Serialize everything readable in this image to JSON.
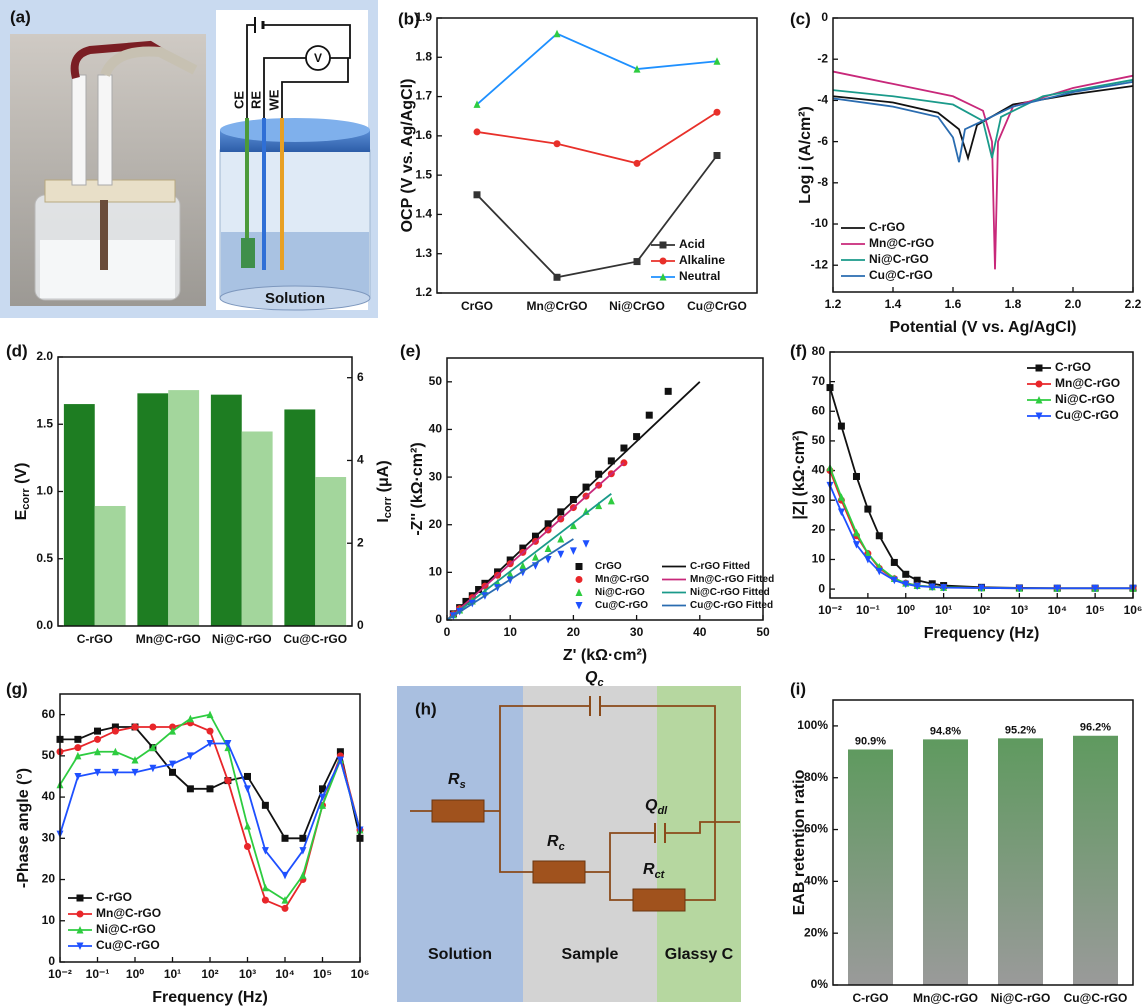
{
  "panel_a": {
    "label": "(a)",
    "electrodes": [
      "CE",
      "RE",
      "WE"
    ],
    "meter": "V",
    "vessel": "Solution"
  },
  "panel_h": {
    "label": "(h)",
    "elements": [
      {
        "symbol": "Q",
        "sub": "c"
      },
      {
        "symbol": "R",
        "sub": "s"
      },
      {
        "symbol": "Q",
        "sub": "dl"
      },
      {
        "symbol": "R",
        "sub": "c"
      },
      {
        "symbol": "R",
        "sub": "ct"
      }
    ],
    "regions": [
      "Solution",
      "Sample",
      "Glassy C"
    ]
  },
  "chart_data": [
    {
      "label": "(b)",
      "type": "line",
      "categories": [
        "CrGO",
        "Mn@CrGO",
        "Ni@CrGO",
        "Cu@CrGO"
      ],
      "series": [
        {
          "name": "Acid",
          "color": "#333333",
          "marker": "square",
          "values": [
            1.45,
            1.24,
            1.28,
            1.55
          ]
        },
        {
          "name": "Alkaline",
          "color": "#e8302a",
          "marker": "circle",
          "values": [
            1.61,
            1.58,
            1.53,
            1.66
          ]
        },
        {
          "name": "Neutral",
          "color": "#1e90ff",
          "marker_color": "#2ecc40",
          "marker": "triangle",
          "values": [
            1.68,
            1.86,
            1.77,
            1.79
          ]
        }
      ],
      "ylim": [
        1.2,
        1.9
      ],
      "yticks": [
        1.2,
        1.3,
        1.4,
        1.5,
        1.6,
        1.7,
        1.8,
        1.9
      ],
      "y_label": "OCP (V vs. Ag/AgCl)",
      "legend": "lower-right"
    },
    {
      "label": "(c)",
      "type": "line",
      "series": [
        {
          "name": "C-rGO",
          "color": "#111111",
          "x": [
            1.2,
            1.4,
            1.55,
            1.62,
            1.65,
            1.68,
            1.8,
            2.0,
            2.2
          ],
          "values": [
            -3.8,
            -4.1,
            -4.6,
            -5.4,
            -6.8,
            -5.2,
            -4.2,
            -3.7,
            -3.3
          ]
        },
        {
          "name": "Mn@C-rGO",
          "color": "#c8287a",
          "x": [
            1.2,
            1.4,
            1.6,
            1.7,
            1.73,
            1.74,
            1.75,
            1.8,
            2.0,
            2.2
          ],
          "values": [
            -2.6,
            -3.2,
            -3.8,
            -4.5,
            -6,
            -12.2,
            -6,
            -4.3,
            -3.4,
            -2.8
          ]
        },
        {
          "name": "Ni@C-rGO",
          "color": "#1a9a8a",
          "x": [
            1.2,
            1.4,
            1.6,
            1.7,
            1.73,
            1.76,
            1.9,
            2.2
          ],
          "values": [
            -3.5,
            -3.8,
            -4.2,
            -5,
            -6.8,
            -4.8,
            -3.8,
            -3.0
          ]
        },
        {
          "name": "Cu@C-rGO",
          "color": "#2a6cb0",
          "x": [
            1.2,
            1.4,
            1.55,
            1.6,
            1.62,
            1.64,
            1.8,
            2.0,
            2.2
          ],
          "values": [
            -3.9,
            -4.3,
            -4.8,
            -5.8,
            -7,
            -5.4,
            -4.3,
            -3.6,
            -3.1
          ]
        }
      ],
      "xlim": [
        1.2,
        2.2
      ],
      "xticks": [
        1.2,
        1.4,
        1.6,
        1.8,
        {
          "value": 2,
          "label": "2.0"
        },
        2.2
      ],
      "ylim": [
        -13.3,
        0
      ],
      "yticks": [
        0,
        -2,
        -4,
        -6,
        -8,
        -10,
        -12
      ],
      "x_label": "Potential (V vs. Ag/AgCl)",
      "y_label": "Log j (A/cm²)",
      "legend": "lower-left"
    },
    {
      "label": "(d)",
      "type": "bar",
      "categories": [
        "C-rGO",
        "Mn@C-rGO",
        "Ni@C-rGO",
        "Cu@C-rGO"
      ],
      "series": [
        {
          "color": "#1e7d22",
          "values": [
            1.65,
            1.73,
            1.72,
            1.61
          ]
        },
        {
          "color": "#a3d69c",
          "axis": "y2",
          "values": [
            2.9,
            5.7,
            4.7,
            3.6
          ]
        }
      ],
      "ylim": [
        0,
        2
      ],
      "yticks": [
        {
          "value": 0,
          "label": "0.0"
        },
        0.5,
        {
          "value": 1,
          "label": "1.0"
        },
        1.5,
        {
          "value": 2,
          "label": "2.0"
        }
      ],
      "y2lim": [
        0,
        6.5
      ],
      "y2ticks": [
        0,
        2,
        4,
        6
      ],
      "y_label": [
        "E",
        "corr",
        " (V)"
      ],
      "y2_label": [
        "I",
        "corr",
        " (μA)"
      ]
    },
    {
      "label": "(e)",
      "type": "scatter",
      "series": [
        {
          "name": "CrGO",
          "color": "#111111",
          "marker": "square",
          "line": false,
          "x": [
            1,
            2,
            3,
            4,
            5,
            6,
            8,
            10,
            12,
            14,
            16,
            18,
            20,
            22,
            24,
            26,
            28,
            30,
            32,
            35
          ],
          "values": [
            1.3,
            2.6,
            3.9,
            5.1,
            6.4,
            7.7,
            10.1,
            12.6,
            15.1,
            17.6,
            20.2,
            22.7,
            25.3,
            27.9,
            30.6,
            33.4,
            36.1,
            38.5,
            43,
            48
          ]
        },
        {
          "name": "C-rGO Fitted",
          "color": "#111111",
          "x": [
            0,
            40
          ],
          "values": [
            0,
            50
          ]
        },
        {
          "name": "Mn@C-rGO",
          "color": "#e8262a",
          "marker": "circle",
          "line": false,
          "x": [
            1,
            2,
            4,
            6,
            8,
            10,
            12,
            14,
            16,
            18,
            20,
            22,
            24,
            26,
            28
          ],
          "values": [
            1.2,
            2.4,
            4.7,
            7.1,
            9.4,
            11.8,
            14.2,
            16.5,
            18.9,
            21.2,
            23.6,
            26,
            28.3,
            30.7,
            33
          ]
        },
        {
          "name": "Mn@C-rGO Fitted",
          "color": "#c8287a",
          "x": [
            0,
            28
          ],
          "values": [
            0,
            33
          ]
        },
        {
          "name": "Ni@C-rGO",
          "color": "#2ecc40",
          "marker": "triangle",
          "line": false,
          "x": [
            1,
            2,
            4,
            6,
            8,
            10,
            12,
            14,
            16,
            18,
            20,
            22,
            24,
            26
          ],
          "values": [
            1.1,
            2.1,
            4,
            5.9,
            7.8,
            9.6,
            11.4,
            13.2,
            15,
            17,
            19.8,
            22.8,
            24,
            25
          ]
        },
        {
          "name": "Ni@C-rGO Fitted",
          "color": "#1a9a8a",
          "x": [
            0,
            26
          ],
          "values": [
            0,
            26.5
          ]
        },
        {
          "name": "Cu@C-rGO",
          "color": "#1e50ff",
          "marker": "triangle-down",
          "line": false,
          "x": [
            1,
            2,
            4,
            6,
            8,
            10,
            12,
            14,
            16,
            18,
            20,
            22
          ],
          "values": [
            0.9,
            1.8,
            3.5,
            5.1,
            6.8,
            8.4,
            10,
            11.4,
            12.7,
            13.8,
            14.5,
            16
          ]
        },
        {
          "name": "Cu@C-rGO Fitted",
          "color": "#2a6cb0",
          "x": [
            0,
            20
          ],
          "values": [
            0,
            17
          ]
        }
      ],
      "xlim": [
        0,
        50
      ],
      "xticks": [
        0,
        10,
        20,
        30,
        40,
        50
      ],
      "ylim": [
        0,
        55
      ],
      "yticks": [
        0,
        10,
        20,
        30,
        40,
        50
      ],
      "x_label": "Z' (kΩ·cm²)",
      "y_label": "-Z'' (kΩ·cm²)",
      "legend": "lower-right",
      "legend_columns": 2
    },
    {
      "label": "(f)",
      "type": "line",
      "xscale": "log",
      "series": [
        {
          "name": "C-rGO",
          "color": "#111111",
          "marker": "square",
          "x": [
            0.01,
            0.02,
            0.05,
            0.1,
            0.2,
            0.5,
            1,
            2,
            5,
            10,
            100,
            1000,
            10000,
            100000,
            1000000
          ],
          "values": [
            68,
            55,
            38,
            27,
            18,
            9,
            5,
            3,
            1.8,
            1.2,
            0.6,
            0.4,
            0.3,
            0.3,
            0.3
          ]
        },
        {
          "name": "Mn@C-rGO",
          "color": "#e8262a",
          "marker": "circle",
          "x": [
            0.01,
            0.02,
            0.05,
            0.1,
            0.2,
            0.5,
            1,
            2,
            5,
            10,
            100,
            1000,
            10000,
            100000,
            1000000
          ],
          "values": [
            40,
            30,
            18,
            12,
            7,
            3.5,
            2,
            1.2,
            0.8,
            0.6,
            0.4,
            0.3,
            0.3,
            0.3,
            0.3
          ]
        },
        {
          "name": "Ni@C-rGO",
          "color": "#2ecc40",
          "marker": "triangle",
          "x": [
            0.01,
            0.02,
            0.05,
            0.1,
            0.2,
            0.5,
            1,
            2,
            5,
            10,
            100,
            1000,
            10000,
            100000,
            1000000
          ],
          "values": [
            41,
            31,
            19,
            12,
            7.5,
            3.6,
            2,
            1.2,
            0.8,
            0.6,
            0.4,
            0.3,
            0.3,
            0.3,
            0.3
          ]
        },
        {
          "name": "Cu@C-rGO",
          "color": "#1e50ff",
          "marker": "triangle-down",
          "x": [
            0.01,
            0.02,
            0.05,
            0.1,
            0.2,
            0.5,
            1,
            2,
            5,
            10,
            100,
            1000,
            10000,
            100000,
            1000000
          ],
          "values": [
            35,
            26,
            15,
            10,
            6,
            3,
            1.7,
            1,
            0.7,
            0.5,
            0.4,
            0.3,
            0.3,
            0.3,
            0.3
          ]
        }
      ],
      "xlim": [
        0.01,
        1000000
      ],
      "xticks": [
        {
          "value": 0.01,
          "label": "10⁻²"
        },
        {
          "value": 0.1,
          "label": "10⁻¹"
        },
        {
          "value": 1,
          "label": "10⁰"
        },
        {
          "value": 10,
          "label": "10¹"
        },
        {
          "value": 100,
          "label": "10²"
        },
        {
          "value": 1000,
          "label": "10³"
        },
        {
          "value": 10000,
          "label": "10⁴"
        },
        {
          "value": 100000,
          "label": "10⁵"
        },
        {
          "value": 1000000,
          "label": "10⁶"
        }
      ],
      "ylim": [
        -3,
        80
      ],
      "yticks": [
        0,
        10,
        20,
        30,
        40,
        50,
        60,
        70,
        80
      ],
      "x_label": "Frequency (Hz)",
      "y_label": "|Z| (kΩ·cm²)",
      "legend": "upper-right"
    },
    {
      "label": "(g)",
      "type": "line",
      "xscale": "log",
      "series": [
        {
          "name": "C-rGO",
          "color": "#111111",
          "marker": "square",
          "x": [
            0.01,
            0.03,
            0.1,
            0.3,
            1,
            3,
            10,
            30,
            100,
            300,
            1000,
            3000,
            10000,
            30000,
            100000,
            300000,
            1000000
          ],
          "values": [
            54,
            54,
            56,
            57,
            57,
            52,
            46,
            42,
            42,
            44,
            45,
            38,
            30,
            30,
            42,
            51,
            30
          ]
        },
        {
          "name": "Mn@C-rGO",
          "color": "#e8262a",
          "marker": "circle",
          "x": [
            0.01,
            0.03,
            0.1,
            0.3,
            1,
            3,
            10,
            30,
            100,
            300,
            1000,
            3000,
            10000,
            30000,
            100000,
            300000,
            1000000
          ],
          "values": [
            51,
            52,
            54,
            56,
            57,
            57,
            57,
            58,
            56,
            44,
            28,
            15,
            13,
            20,
            38,
            50,
            32
          ]
        },
        {
          "name": "Ni@C-rGO",
          "color": "#2ecc40",
          "marker": "triangle",
          "x": [
            0.01,
            0.03,
            0.1,
            0.3,
            1,
            3,
            10,
            30,
            100,
            300,
            1000,
            3000,
            10000,
            30000,
            100000,
            300000,
            1000000
          ],
          "values": [
            43,
            50,
            51,
            51,
            49,
            52,
            56,
            59,
            60,
            52,
            33,
            18,
            15,
            21,
            38,
            49,
            32
          ]
        },
        {
          "name": "Cu@C-rGO",
          "color": "#1e50ff",
          "marker": "triangle-down",
          "x": [
            0.01,
            0.03,
            0.1,
            0.3,
            1,
            3,
            10,
            30,
            100,
            300,
            1000,
            3000,
            10000,
            30000,
            100000,
            300000,
            1000000
          ],
          "values": [
            31,
            45,
            46,
            46,
            46,
            47,
            48,
            50,
            53,
            53,
            42,
            27,
            21,
            27,
            40,
            49,
            32
          ]
        }
      ],
      "xlim": [
        0.01,
        1000000
      ],
      "xticks": [
        {
          "value": 0.01,
          "label": "10⁻²"
        },
        {
          "value": 0.1,
          "label": "10⁻¹"
        },
        {
          "value": 1,
          "label": "10⁰"
        },
        {
          "value": 10,
          "label": "10¹"
        },
        {
          "value": 100,
          "label": "10²"
        },
        {
          "value": 1000,
          "label": "10³"
        },
        {
          "value": 10000,
          "label": "10⁴"
        },
        {
          "value": 100000,
          "label": "10⁵"
        },
        {
          "value": 1000000,
          "label": "10⁶"
        }
      ],
      "ylim": [
        0,
        65
      ],
      "yticks": [
        0,
        10,
        20,
        30,
        40,
        50,
        60
      ],
      "x_label": "Frequency (Hz)",
      "y_label": "-Phase angle (°)",
      "legend": "lower-left"
    },
    {
      "label": "(i)",
      "type": "bar",
      "categories": [
        "C-rGO",
        "Mn@C-rGO",
        "Ni@C-rGO",
        "Cu@C-rGO"
      ],
      "values": [
        90.9,
        94.8,
        95.2,
        96.2
      ],
      "value_labels": [
        "90.9%",
        "94.8%",
        "95.2%",
        "96.2%"
      ],
      "color": "#5f9a5f",
      "color_bottom": "#9a9a9a",
      "ylim": [
        0,
        110
      ],
      "yticks": [
        {
          "value": 0,
          "label": "0%"
        },
        {
          "value": 20,
          "label": "20%"
        },
        {
          "value": 40,
          "label": "40%"
        },
        {
          "value": 60,
          "label": "60%"
        },
        {
          "value": 80,
          "label": "80%"
        },
        {
          "value": 100,
          "label": "100%"
        }
      ],
      "y_label": "EAB retention ratio"
    }
  ]
}
